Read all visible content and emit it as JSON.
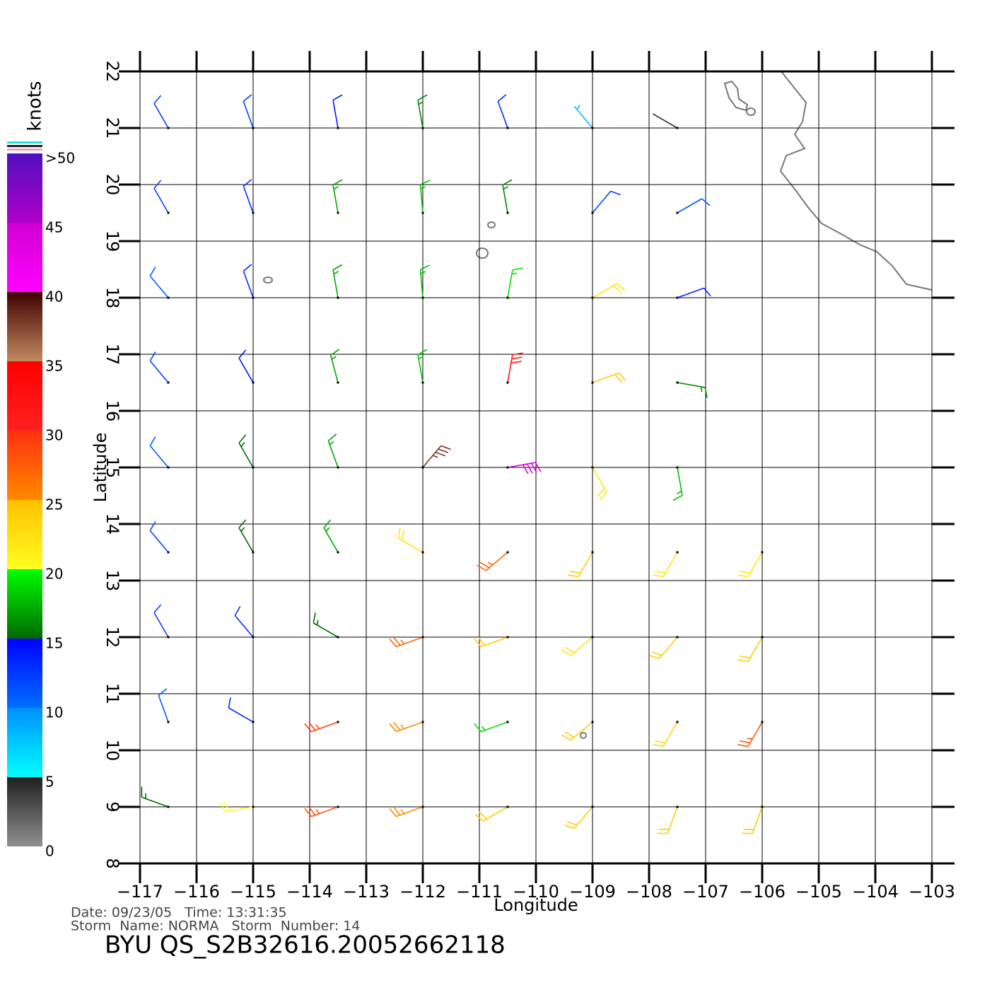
{
  "chart_data": {
    "type": "wind-barbs",
    "xlabel": "Longitude",
    "ylabel": "Latitude",
    "xlim": [
      -117,
      -103
    ],
    "ylim": [
      8,
      22
    ],
    "xticks": [
      {
        "value": -117,
        "label": "−117"
      },
      {
        "value": -116,
        "label": "−116"
      },
      {
        "value": -115,
        "label": "−115"
      },
      {
        "value": -114,
        "label": "−114"
      },
      {
        "value": -113,
        "label": "−113"
      },
      {
        "value": -112,
        "label": "−112"
      },
      {
        "value": -111,
        "label": "−111"
      },
      {
        "value": -110,
        "label": "−110"
      },
      {
        "value": -109,
        "label": "−109"
      },
      {
        "value": -108,
        "label": "−108"
      },
      {
        "value": -107,
        "label": "−107"
      },
      {
        "value": -106,
        "label": "−106"
      },
      {
        "value": -105,
        "label": "−105"
      },
      {
        "value": -104,
        "label": "−104"
      },
      {
        "value": -103,
        "label": "−103"
      }
    ],
    "yticks": [
      8,
      9,
      10,
      11,
      12,
      13,
      14,
      15,
      16,
      17,
      18,
      19,
      20,
      21,
      22
    ],
    "grid": true,
    "colorbar": {
      "label": "knots",
      "ticks": [
        0,
        5,
        10,
        15,
        20,
        25,
        30,
        35,
        40,
        45,
        {
          "value": 50,
          "label": ">50"
        }
      ],
      "gradients": [
        [
          "#909090",
          "#202020"
        ],
        [
          "#00ffff",
          "#0090ff"
        ],
        [
          "#0070ff",
          "#0000ff"
        ],
        [
          "#006a00",
          "#00ff00"
        ],
        [
          "#ffff20",
          "#ffc000"
        ],
        [
          "#ff8a00",
          "#ff3010"
        ],
        [
          "#ff2020",
          "#ff0000"
        ],
        [
          "#c08a60",
          "#400000"
        ],
        [
          "#ff00ff",
          "#d000d0"
        ],
        [
          "#b000c8",
          "#5010c0"
        ]
      ]
    },
    "wind_barbs": {
      "lon": [
        -116.5,
        -115,
        -113.5,
        -112,
        -110.5,
        -109,
        -107.5,
        -116.5,
        -115,
        -113.5,
        -112,
        -110.5,
        -109,
        -107.5,
        -116.5,
        -115,
        -113.5,
        -112,
        -110.5,
        -109,
        -107.5,
        -116.5,
        -115,
        -113.5,
        -112,
        -110.5,
        -109,
        -107.5,
        -116.5,
        -115,
        -113.5,
        -112,
        -110.5,
        -109,
        -107.5,
        -116.5,
        -115,
        -113.5,
        -112,
        -110.5,
        -109,
        -107.5,
        -116.5,
        -115,
        -113.5,
        -112,
        -110.5,
        -109,
        -107.5,
        -116.5,
        -115,
        -113.5,
        -112,
        -110.5,
        -109,
        -107.5,
        -116.5,
        -115,
        -113.5,
        -112,
        -110.5,
        -109,
        -107.5,
        -106,
        -106,
        -106,
        -106
      ],
      "lat": [
        21,
        21,
        21,
        21,
        21,
        21,
        21,
        19.5,
        19.5,
        19.5,
        19.5,
        19.5,
        19.5,
        19.5,
        18,
        18,
        18,
        18,
        18,
        18,
        18,
        16.5,
        16.5,
        16.5,
        16.5,
        16.5,
        16.5,
        16.5,
        15,
        15,
        15,
        15,
        15,
        15,
        15,
        13.5,
        13.5,
        13.5,
        13.5,
        13.5,
        13.5,
        13.5,
        12,
        12,
        12,
        12,
        12,
        12,
        12,
        10.5,
        10.5,
        10.5,
        10.5,
        10.5,
        10.5,
        10.5,
        9,
        9,
        9,
        9,
        9,
        9,
        9,
        9,
        10.5,
        12,
        13.5
      ],
      "direction": [
        330,
        340,
        350,
        350,
        340,
        320,
        300,
        330,
        340,
        350,
        355,
        350,
        40,
        60,
        320,
        340,
        350,
        355,
        10,
        60,
        70,
        320,
        330,
        345,
        350,
        10,
        70,
        100,
        320,
        330,
        340,
        40,
        80,
        150,
        170,
        320,
        330,
        330,
        300,
        230,
        210,
        210,
        330,
        320,
        300,
        250,
        250,
        230,
        220,
        340,
        300,
        250,
        250,
        250,
        230,
        210,
        290,
        260,
        250,
        250,
        240,
        220,
        200,
        200,
        210,
        210,
        210
      ],
      "speed": [
        12,
        12,
        14,
        16,
        13,
        8,
        4,
        12,
        13,
        17,
        18,
        16,
        12,
        11,
        11,
        13,
        17,
        18,
        19,
        22,
        13,
        12,
        14,
        17,
        18,
        32,
        24,
        16,
        11,
        15,
        17,
        38,
        44,
        22,
        18,
        12,
        15,
        17,
        22,
        27,
        24,
        22,
        12,
        13,
        15,
        27,
        24,
        22,
        24,
        11,
        13,
        29,
        25,
        19,
        24,
        23,
        15,
        20,
        28,
        25,
        24,
        24,
        24,
        24,
        28,
        24,
        22
      ]
    }
  },
  "info": {
    "date_time": "Date: 09/23/05   Time: 13:31:35",
    "storm": "Storm  Name: NORMA   Storm  Number: 14",
    "file": "BYU  QS_S2B32616.20052662118"
  }
}
